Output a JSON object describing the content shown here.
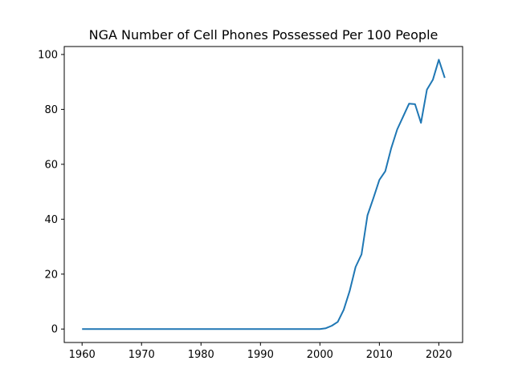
{
  "chart_data": {
    "type": "line",
    "title": "NGA Number of Cell Phones Possessed Per 100 People",
    "xlabel": "",
    "ylabel": "",
    "xlim": [
      1957,
      2024
    ],
    "ylim": [
      -4.9,
      102.9
    ],
    "xticks": [
      1960,
      1970,
      1980,
      1990,
      2000,
      2010,
      2020
    ],
    "yticks": [
      0,
      20,
      40,
      60,
      80,
      100
    ],
    "grid": false,
    "line_color": "#1f77b4",
    "series": [
      {
        "x": [
          1960,
          1961,
          1962,
          1963,
          1964,
          1965,
          1966,
          1967,
          1968,
          1969,
          1970,
          1971,
          1972,
          1973,
          1974,
          1975,
          1976,
          1977,
          1978,
          1979,
          1980,
          1981,
          1982,
          1983,
          1984,
          1985,
          1986,
          1987,
          1988,
          1989,
          1990,
          1991,
          1992,
          1993,
          1994,
          1995,
          1996,
          1997,
          1998,
          1999,
          2000,
          2001,
          2002,
          2003,
          2004,
          2005,
          2006,
          2007,
          2008,
          2009,
          2010,
          2011,
          2012,
          2013,
          2014,
          2015,
          2016,
          2017,
          2018,
          2019,
          2020,
          2021
        ],
        "values": [
          0,
          0,
          0,
          0,
          0,
          0,
          0,
          0,
          0,
          0,
          0,
          0,
          0,
          0,
          0,
          0,
          0,
          0,
          0,
          0,
          0,
          0,
          0,
          0,
          0,
          0,
          0,
          0,
          0,
          0,
          0,
          0,
          0,
          0,
          0,
          0,
          0,
          0,
          0,
          0,
          0,
          0.3,
          1.2,
          2.6,
          7.0,
          13.8,
          22.6,
          27.2,
          41.4,
          47.7,
          54.3,
          57.5,
          65.9,
          72.7,
          77.4,
          82.1,
          81.9,
          75.1,
          87.2,
          90.8,
          98.1,
          91.5
        ]
      }
    ]
  }
}
